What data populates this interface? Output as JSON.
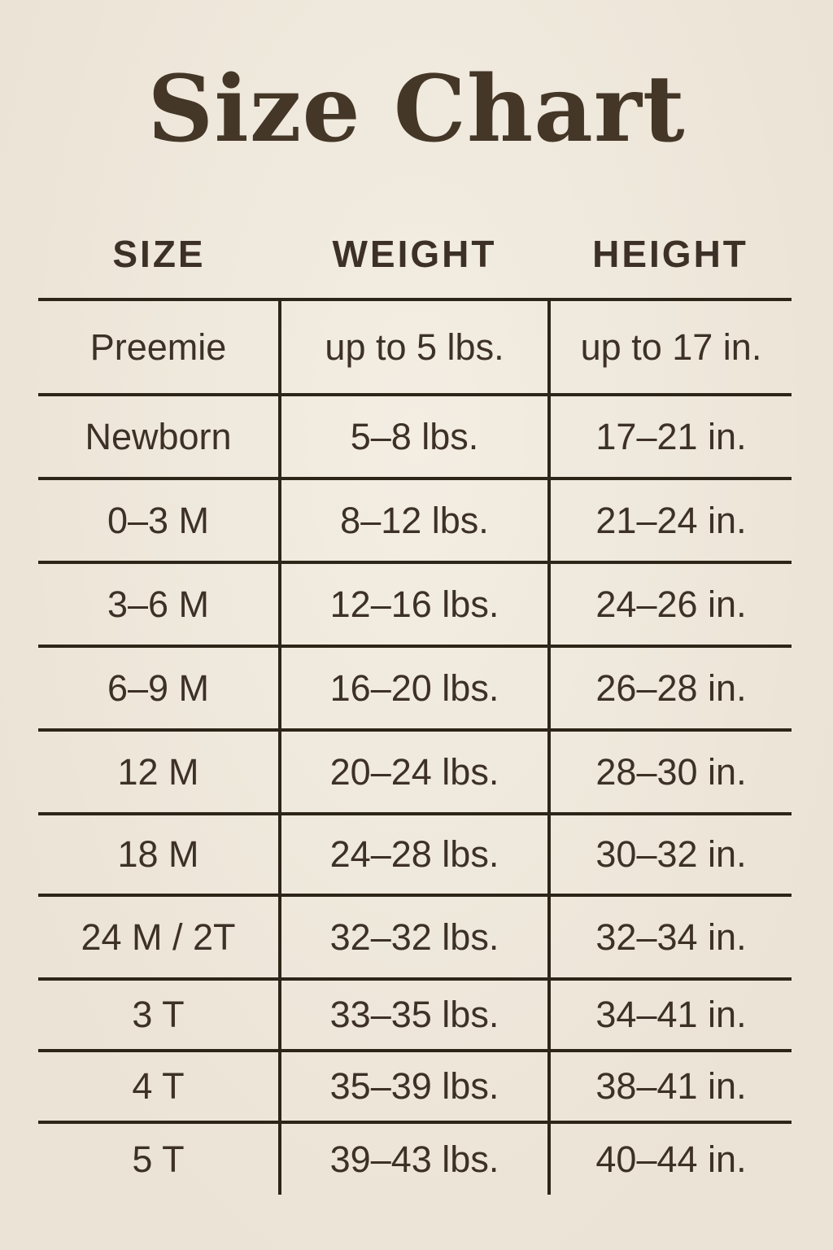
{
  "title": "Size Chart",
  "table": {
    "columns": [
      "SIZE",
      "WEIGHT",
      "HEIGHT"
    ],
    "rows": [
      [
        "Preemie",
        "up to 5 lbs.",
        "up to 17 in."
      ],
      [
        "Newborn",
        "5–8 lbs.",
        "17–21 in."
      ],
      [
        "0–3 M",
        "8–12 lbs.",
        "21–24 in."
      ],
      [
        "3–6 M",
        "12–16 lbs.",
        "24–26 in."
      ],
      [
        "6–9 M",
        "16–20 lbs.",
        "26–28 in."
      ],
      [
        "12 M",
        "20–24 lbs.",
        "28–30 in."
      ],
      [
        "18 M",
        "24–28 lbs.",
        "30–32 in."
      ],
      [
        "24 M / 2T",
        "32–32 lbs.",
        "32–34 in."
      ],
      [
        "3 T",
        "33–35 lbs.",
        "34–41 in."
      ],
      [
        "4 T",
        "35–39 lbs.",
        "38–41 in."
      ],
      [
        "5 T",
        "39–43 lbs.",
        "40–44 in."
      ]
    ]
  },
  "colors": {
    "background": "#EFE7D9",
    "title_text": "#453727",
    "body_text": "#3D3126",
    "rule_line": "#2D2517"
  }
}
